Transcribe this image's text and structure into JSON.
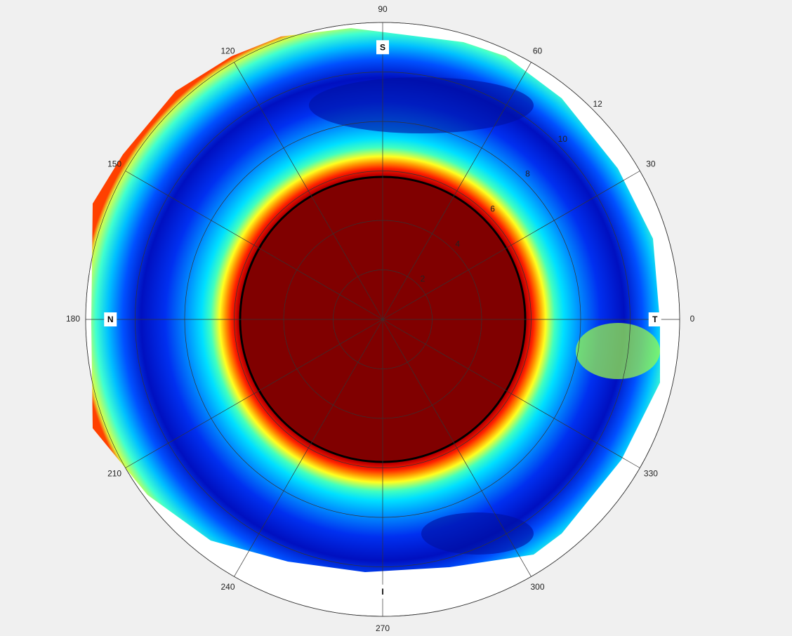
{
  "chart_data": {
    "type": "polar-contour",
    "rlim": [
      0,
      12
    ],
    "rticks": [
      2,
      4,
      6,
      8,
      10,
      12
    ],
    "thetaticks": [
      0,
      30,
      60,
      90,
      120,
      150,
      180,
      210,
      240,
      270,
      300,
      330
    ],
    "directions": [
      {
        "text": "T",
        "theta": 0
      },
      {
        "text": "S",
        "theta": 90
      },
      {
        "text": "N",
        "theta": 180
      },
      {
        "text": "I",
        "theta": 270
      }
    ],
    "direction_r": 11,
    "rtick_angle": 45,
    "colormap": "jet"
  }
}
